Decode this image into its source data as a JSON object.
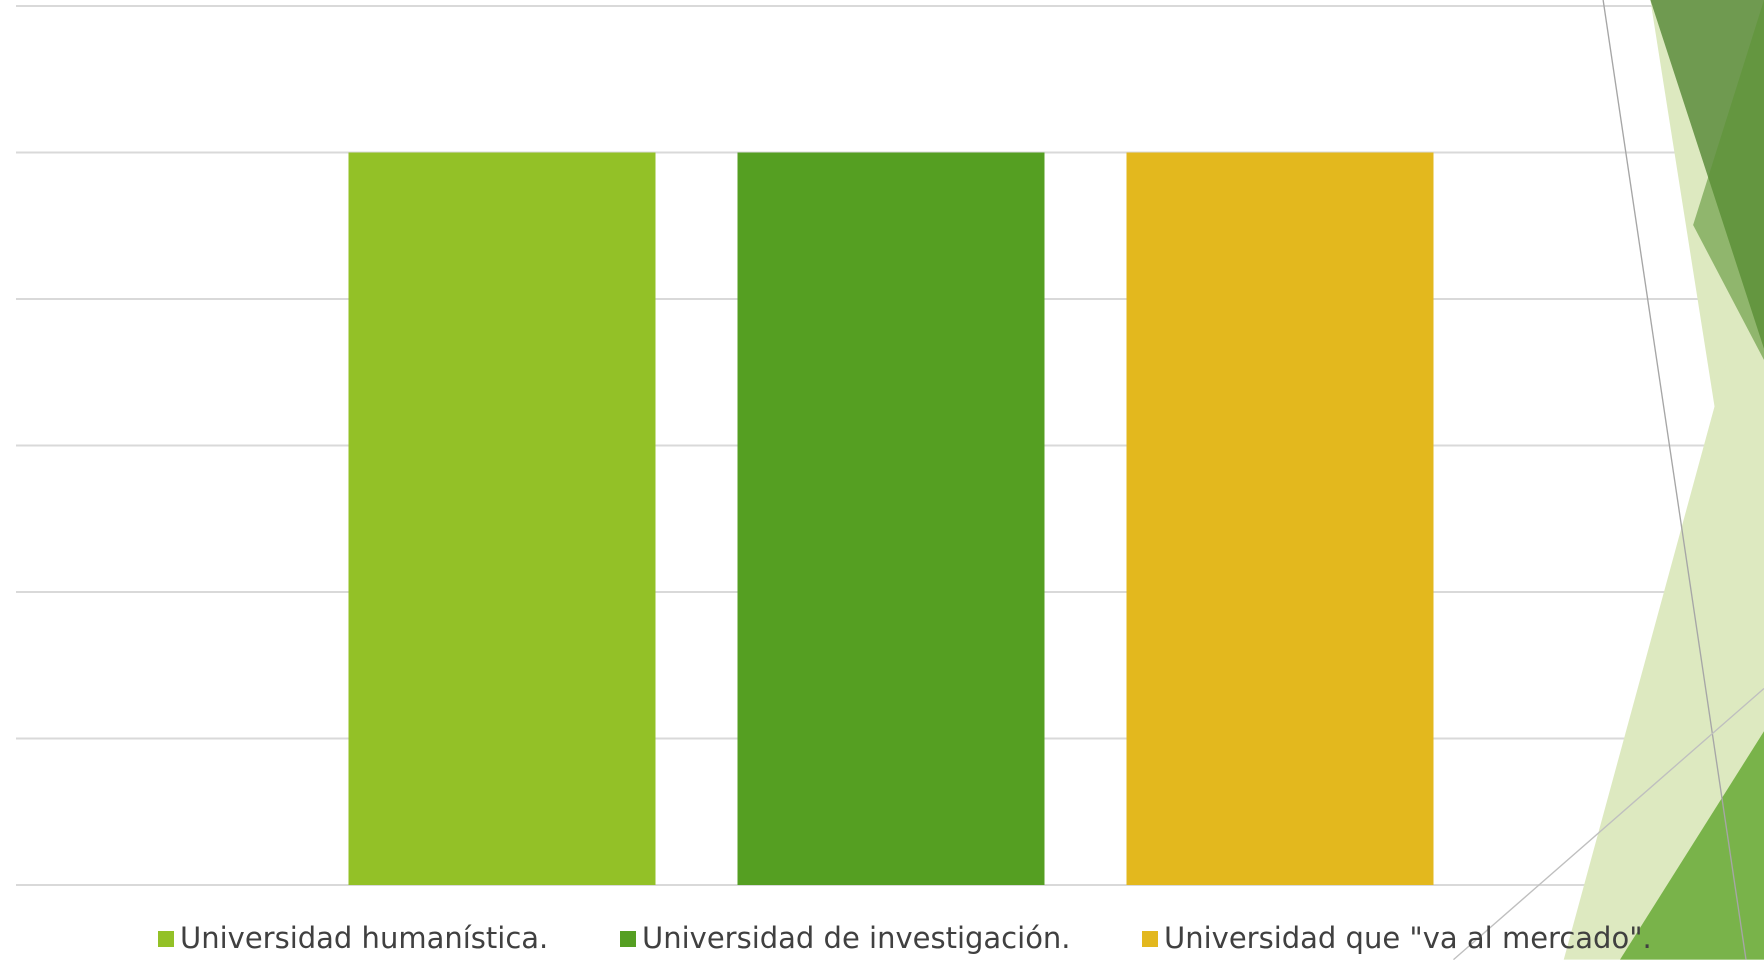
{
  "chart_data": {
    "type": "bar",
    "categories": [
      null
    ],
    "series": [
      {
        "name": "Universidad humanística.",
        "color": "#93c127",
        "values": [
          5
        ]
      },
      {
        "name": "Universidad de investigación.",
        "color": "#559f22",
        "values": [
          5
        ]
      },
      {
        "name": "Universidad que \"va al mercado\".",
        "color": "#e3b81e",
        "values": [
          5
        ]
      }
    ],
    "ylim": [
      0,
      6
    ],
    "yticks": [
      0,
      1,
      2,
      3,
      4,
      5,
      6
    ],
    "grid": true,
    "legend": "bottom"
  }
}
